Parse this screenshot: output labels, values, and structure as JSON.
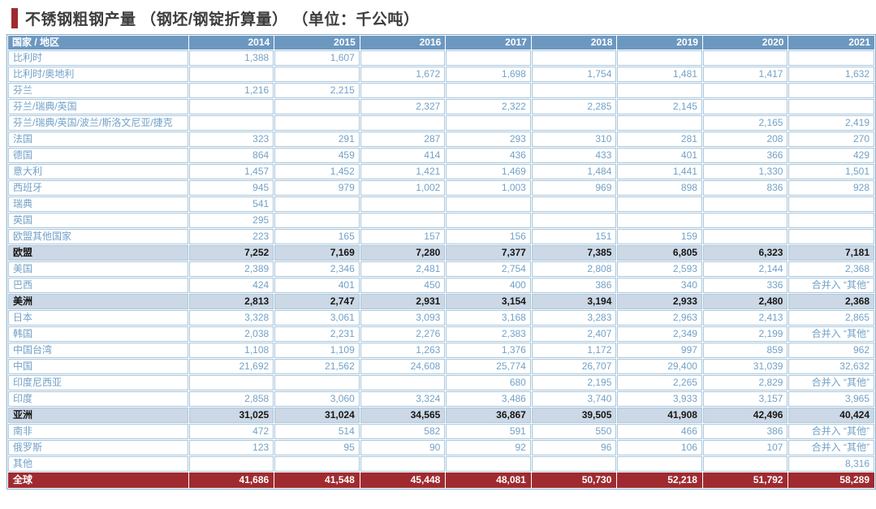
{
  "title": {
    "text": "不锈钢粗钢产量 （钢坯/钢锭折算量） （单位：千公吨）"
  },
  "table": {
    "first_col_header": "国家 / 地区",
    "year_headers": [
      "2014",
      "2015",
      "2016",
      "2017",
      "2018",
      "2019",
      "2020",
      "2021"
    ],
    "merged_note": "合并入 “其他”",
    "rows": [
      {
        "label": "比利时",
        "type": "data",
        "values": [
          "1,388",
          "1,607",
          "",
          "",
          "",
          "",
          "",
          ""
        ]
      },
      {
        "label": "比利时/奥地利",
        "type": "data",
        "values": [
          "",
          "",
          "1,672",
          "1,698",
          "1,754",
          "1,481",
          "1,417",
          "1,632"
        ]
      },
      {
        "label": "芬兰",
        "type": "data",
        "values": [
          "1,216",
          "2,215",
          "",
          "",
          "",
          "",
          "",
          ""
        ]
      },
      {
        "label": "芬兰/瑞典/英国",
        "type": "data",
        "values": [
          "",
          "",
          "2,327",
          "2,322",
          "2,285",
          "2,145",
          "",
          ""
        ]
      },
      {
        "label": "芬兰/瑞典/英国/波兰/斯洛文尼亚/捷克",
        "type": "data",
        "values": [
          "",
          "",
          "",
          "",
          "",
          "",
          "2,165",
          "2,419"
        ]
      },
      {
        "label": "法国",
        "type": "data",
        "values": [
          "323",
          "291",
          "287",
          "293",
          "310",
          "281",
          "208",
          "270"
        ]
      },
      {
        "label": "德国",
        "type": "data",
        "values": [
          "864",
          "459",
          "414",
          "436",
          "433",
          "401",
          "366",
          "429"
        ]
      },
      {
        "label": "意大利",
        "type": "data",
        "values": [
          "1,457",
          "1,452",
          "1,421",
          "1,469",
          "1,484",
          "1,441",
          "1,330",
          "1,501"
        ]
      },
      {
        "label": "西班牙",
        "type": "data",
        "values": [
          "945",
          "979",
          "1,002",
          "1,003",
          "969",
          "898",
          "836",
          "928"
        ]
      },
      {
        "label": "瑞典",
        "type": "data",
        "values": [
          "541",
          "",
          "",
          "",
          "",
          "",
          "",
          ""
        ]
      },
      {
        "label": "英国",
        "type": "data",
        "values": [
          "295",
          "",
          "",
          "",
          "",
          "",
          "",
          ""
        ]
      },
      {
        "label": "欧盟其他国家",
        "type": "data",
        "values": [
          "223",
          "165",
          "157",
          "156",
          "151",
          "159",
          "",
          ""
        ]
      },
      {
        "label": "欧盟",
        "type": "subtotal",
        "values": [
          "7,252",
          "7,169",
          "7,280",
          "7,377",
          "7,385",
          "6,805",
          "6,323",
          "7,181"
        ]
      },
      {
        "label": "美国",
        "type": "data",
        "values": [
          "2,389",
          "2,346",
          "2,481",
          "2,754",
          "2,808",
          "2,593",
          "2,144",
          "2,368"
        ]
      },
      {
        "label": "巴西",
        "type": "data",
        "values": [
          "424",
          "401",
          "450",
          "400",
          "386",
          "340",
          "336",
          "合并入 “其他”"
        ]
      },
      {
        "label": "美洲",
        "type": "subtotal",
        "values": [
          "2,813",
          "2,747",
          "2,931",
          "3,154",
          "3,194",
          "2,933",
          "2,480",
          "2,368"
        ]
      },
      {
        "label": "日本",
        "type": "data",
        "values": [
          "3,328",
          "3,061",
          "3,093",
          "3,168",
          "3,283",
          "2,963",
          "2,413",
          "2,865"
        ]
      },
      {
        "label": "韩国",
        "type": "data",
        "values": [
          "2,038",
          "2,231",
          "2,276",
          "2,383",
          "2,407",
          "2,349",
          "2,199",
          "合并入 “其他”"
        ]
      },
      {
        "label": "中国台湾",
        "type": "data",
        "values": [
          "1,108",
          "1,109",
          "1,263",
          "1,376",
          "1,172",
          "997",
          "859",
          "962"
        ]
      },
      {
        "label": "中国",
        "type": "data",
        "values": [
          "21,692",
          "21,562",
          "24,608",
          "25,774",
          "26,707",
          "29,400",
          "31,039",
          "32,632"
        ]
      },
      {
        "label": "印度尼西亚",
        "type": "data",
        "values": [
          "",
          "",
          "",
          "680",
          "2,195",
          "2,265",
          "2,829",
          "合并入 “其他”"
        ]
      },
      {
        "label": "印度",
        "type": "data",
        "values": [
          "2,858",
          "3,060",
          "3,324",
          "3,486",
          "3,740",
          "3,933",
          "3,157",
          "3,965"
        ]
      },
      {
        "label": "亚洲",
        "type": "subtotal",
        "values": [
          "31,025",
          "31,024",
          "34,565",
          "36,867",
          "39,505",
          "41,908",
          "42,496",
          "40,424"
        ]
      },
      {
        "label": "南非",
        "type": "data",
        "values": [
          "472",
          "514",
          "582",
          "591",
          "550",
          "466",
          "386",
          "合并入 “其他”"
        ]
      },
      {
        "label": "俄罗斯",
        "type": "data",
        "values": [
          "123",
          "95",
          "90",
          "92",
          "96",
          "106",
          "107",
          "合并入 “其他”"
        ]
      },
      {
        "label": "其他",
        "type": "data",
        "values": [
          "",
          "",
          "",
          "",
          "",
          "",
          "",
          "8,316"
        ]
      },
      {
        "label": "全球",
        "type": "total",
        "values": [
          "41,686",
          "41,548",
          "45,448",
          "48,081",
          "50,730",
          "52,218",
          "51,792",
          "58,289"
        ]
      }
    ]
  },
  "colors": {
    "accent_red": "#9e2b2f",
    "header_blue": "#6c98c0",
    "data_text_blue": "#72a1c8",
    "subtotal_bg": "#ccd8e5",
    "total_bg": "#9f2b30",
    "grid_border": "#a9c6dc"
  }
}
